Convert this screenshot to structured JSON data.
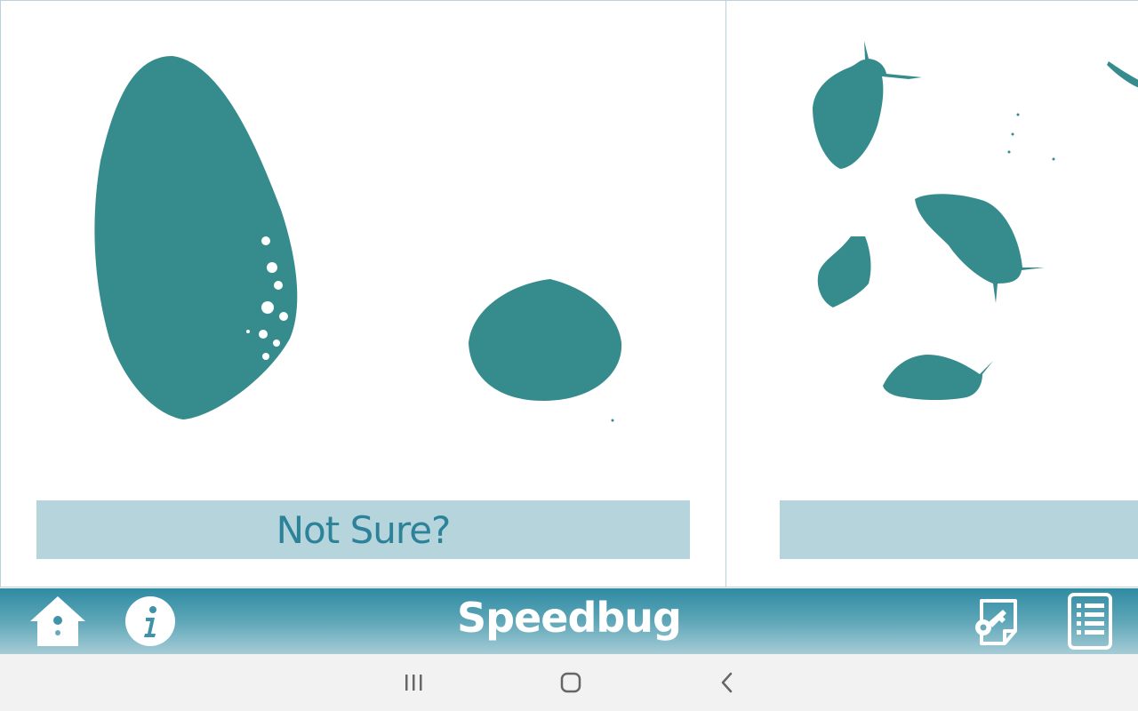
{
  "panels": {
    "left": {
      "button_label": "Not Sure?"
    },
    "right": {
      "button_label": ""
    }
  },
  "app_bar": {
    "title": "Speedbug",
    "icons": [
      "home-icon",
      "info-icon",
      "key-icon",
      "list-icon"
    ]
  },
  "system_nav": {
    "icons": [
      "recents-icon",
      "home-circle-icon",
      "back-chevron-icon"
    ]
  },
  "colors": {
    "specimen": "#368c8c",
    "button_bg": "#b5d4db",
    "button_text": "#2b8299",
    "panel_border": "#b7d3dc",
    "app_bar_top": "#2f8ba2",
    "app_bar_bottom": "#a7ccd6"
  }
}
